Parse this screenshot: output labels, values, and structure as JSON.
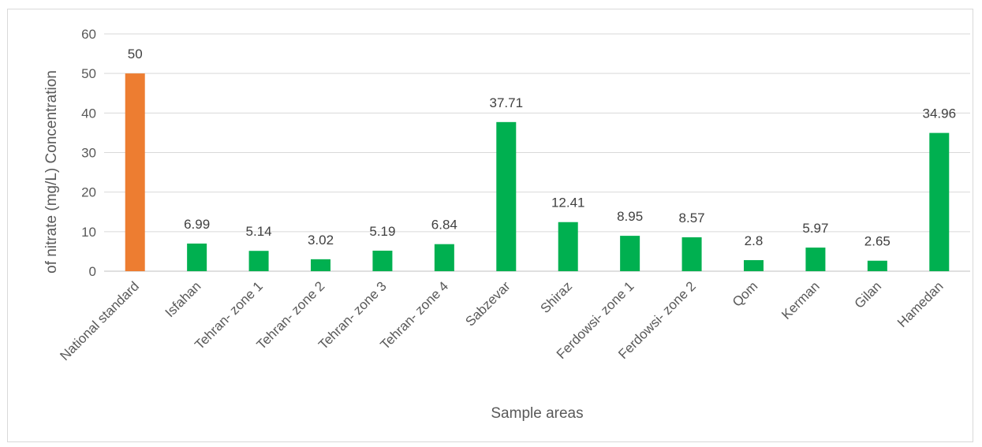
{
  "chart_data": {
    "type": "bar",
    "title": "",
    "xlabel": "Sample areas",
    "ylabel": "of nitrate (mg/L) Concentration",
    "ylim": [
      0,
      60
    ],
    "yticks": [
      0,
      10,
      20,
      30,
      40,
      50,
      60
    ],
    "grid": true,
    "legend": "none",
    "categories": [
      "National standard",
      "Isfahan",
      "Tehran- zone 1",
      "Tehran- zone 2",
      "Tehran- zone 3",
      "Tehran- zone 4",
      "Sabzevar",
      "Shiraz",
      "Ferdowsi- zone 1",
      "Ferdowsi- zone 2",
      "Qom",
      "Kerman",
      "Gilan",
      "Hamedan"
    ],
    "values": [
      50,
      6.99,
      5.14,
      3.02,
      5.19,
      6.84,
      37.71,
      12.41,
      8.95,
      8.57,
      2.8,
      5.97,
      2.65,
      34.96
    ],
    "value_labels": [
      "50",
      "6.99",
      "5.14",
      "3.02",
      "5.19",
      "6.84",
      "37.71",
      "12.41",
      "8.95",
      "8.57",
      "2.8",
      "5.97",
      "2.65",
      "34.96"
    ],
    "bar_colors": [
      "#ed7d31",
      "#00b050",
      "#00b050",
      "#00b050",
      "#00b050",
      "#00b050",
      "#00b050",
      "#00b050",
      "#00b050",
      "#00b050",
      "#00b050",
      "#00b050",
      "#00b050",
      "#00b050"
    ],
    "colors": {
      "grid": "#d9d9d9",
      "axis": "#bfbfbf",
      "text": "#595959"
    }
  }
}
